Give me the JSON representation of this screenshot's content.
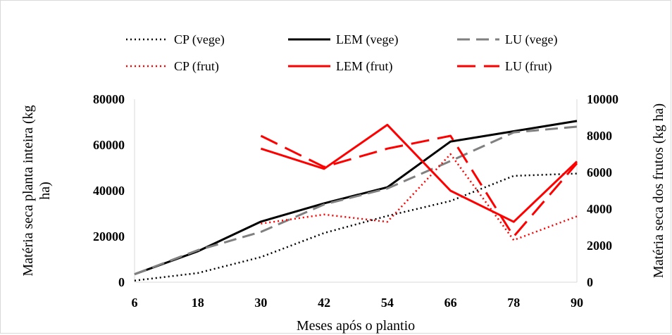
{
  "chart_data": {
    "type": "line",
    "x": [
      6,
      18,
      30,
      42,
      54,
      66,
      78,
      90
    ],
    "xlabel": "Meses após o plantio",
    "ylabel_left_lines": [
      "Matéria seca planta inteira (kg",
      "ha)"
    ],
    "ylabel_right": "Matéria seca dos frutos (kg ha)",
    "ylim_left": [
      0,
      80000
    ],
    "yticks_left": [
      0,
      20000,
      40000,
      60000,
      80000
    ],
    "ylim_right": [
      0,
      10000
    ],
    "yticks_right": [
      0,
      2000,
      4000,
      6000,
      8000,
      10000
    ],
    "grid": false,
    "legend_position": "top",
    "series": [
      {
        "name": "CP (vege)",
        "axis": "left",
        "color": "#000000",
        "dash": "dot",
        "values": [
          700,
          4000,
          11000,
          21500,
          29000,
          35500,
          46500,
          47500
        ]
      },
      {
        "name": "LEM (vege)",
        "axis": "left",
        "color": "#000000",
        "dash": "solid",
        "values": [
          3500,
          13500,
          26500,
          34500,
          41500,
          61500,
          66000,
          70500
        ]
      },
      {
        "name": "LU (vege)",
        "axis": "left",
        "color": "#808080",
        "dash": "dash",
        "values": [
          3500,
          14000,
          22000,
          34000,
          41000,
          53000,
          65500,
          68000
        ]
      },
      {
        "name": "CP (frut)",
        "axis": "right",
        "color": "#ff0000",
        "dash": "dot",
        "values": [
          null,
          null,
          3200,
          3700,
          3300,
          7000,
          2300,
          3600
        ]
      },
      {
        "name": "LEM (frut)",
        "axis": "right",
        "color": "#ff0000",
        "dash": "solid",
        "values": [
          null,
          null,
          7300,
          6200,
          8600,
          5000,
          3300,
          6600
        ]
      },
      {
        "name": "LU (frut)",
        "axis": "right",
        "color": "#ff0000",
        "dash": "longdash",
        "values": [
          null,
          null,
          8000,
          6300,
          7300,
          8000,
          2500,
          6500
        ]
      }
    ]
  }
}
